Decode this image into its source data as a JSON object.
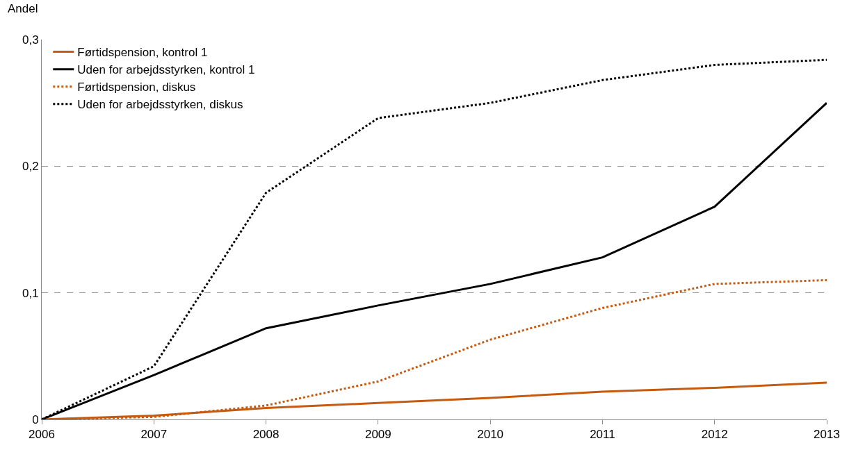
{
  "chart_data": {
    "type": "line",
    "ylabel": "Andel",
    "x": [
      2006,
      2007,
      2008,
      2009,
      2010,
      2011,
      2012,
      2013
    ],
    "xlim": [
      2006,
      2013
    ],
    "xticks": [
      2006,
      2007,
      2008,
      2009,
      2010,
      2011,
      2012,
      2013
    ],
    "ylim": [
      0,
      0.3
    ],
    "yticks": [
      {
        "value": 0,
        "label": "0"
      },
      {
        "value": 0.1,
        "label": "0,1"
      },
      {
        "value": 0.2,
        "label": "0,2"
      },
      {
        "value": 0.3,
        "label": "0,3"
      }
    ],
    "grid": "y",
    "legend": "top left",
    "marker": "none",
    "series": [
      {
        "name": "Førtidspension, kontrol 1",
        "color": "#c55a11",
        "line_style": "solid",
        "values": [
          0,
          0.003,
          0.009,
          0.013,
          0.017,
          0.022,
          0.025,
          0.029
        ]
      },
      {
        "name": "Uden for arbejdsstyrken, kontrol 1",
        "color": "#000000",
        "line_style": "solid",
        "values": [
          0,
          0.035,
          0.072,
          0.09,
          0.107,
          0.128,
          0.168,
          0.25
        ]
      },
      {
        "name": "Førtidspension, diskus",
        "color": "#c55a11",
        "line_style": "dotted",
        "values": [
          0,
          0.002,
          0.011,
          0.03,
          0.063,
          0.088,
          0.107,
          0.11
        ]
      },
      {
        "name": "Uden for arbejdsstyrken, diskus",
        "color": "#000000",
        "line_style": "dotted",
        "values": [
          0,
          0.042,
          0.179,
          0.238,
          0.25,
          0.268,
          0.28,
          0.284
        ]
      }
    ]
  }
}
